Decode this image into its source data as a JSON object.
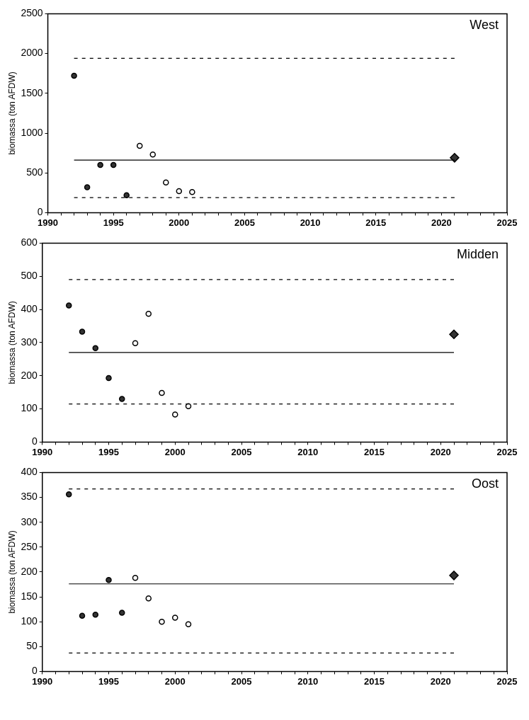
{
  "chart_data": [
    {
      "type": "scatter",
      "title": "West",
      "ylabel": "biomassa (ton AFDW)",
      "xlim": [
        1990,
        2025
      ],
      "ylim": [
        0,
        2500
      ],
      "yticks": [
        0,
        500,
        1000,
        1500,
        2000,
        2500
      ],
      "xticks": [
        1990,
        {
          "value": 1991,
          "label": null
        },
        {
          "value": 1992,
          "label": null
        },
        {
          "value": 1993,
          "label": null
        },
        {
          "value": 1994,
          "label": null
        },
        1995,
        {
          "value": 1996,
          "label": null
        },
        {
          "value": 1997,
          "label": null
        },
        {
          "value": 1998,
          "label": null
        },
        {
          "value": 1999,
          "label": null
        },
        2000,
        {
          "value": 2001,
          "label": null
        },
        {
          "value": 2002,
          "label": null
        },
        {
          "value": 2003,
          "label": null
        },
        {
          "value": 2004,
          "label": null
        },
        2005,
        {
          "value": 2006,
          "label": null
        },
        {
          "value": 2007,
          "label": null
        },
        {
          "value": 2008,
          "label": null
        },
        {
          "value": 2009,
          "label": null
        },
        2010,
        {
          "value": 2011,
          "label": null
        },
        {
          "value": 2012,
          "label": null
        },
        {
          "value": 2013,
          "label": null
        },
        {
          "value": 2014,
          "label": null
        },
        2015,
        {
          "value": 2016,
          "label": null
        },
        {
          "value": 2017,
          "label": null
        },
        {
          "value": 2018,
          "label": null
        },
        {
          "value": 2019,
          "label": null
        },
        2020,
        {
          "value": 2021,
          "label": null
        },
        {
          "value": 2022,
          "label": null
        },
        {
          "value": 2023,
          "label": null
        },
        {
          "value": 2024,
          "label": null
        },
        2025
      ],
      "grid": false,
      "legend": false,
      "series": [
        {
          "type": "line",
          "color": "#000000",
          "line_style": "solid",
          "x": [
            1992,
            2021
          ],
          "values": [
            660,
            660
          ]
        },
        {
          "type": "line",
          "color": "#000000",
          "line_style": "dashed",
          "x": [
            1992,
            2021
          ],
          "values": [
            1940,
            1940
          ]
        },
        {
          "type": "line",
          "color": "#000000",
          "line_style": "dashed",
          "x": [
            1992,
            2021
          ],
          "values": [
            190,
            190
          ]
        },
        {
          "type": "scatter",
          "marker": "circle",
          "color": "#333333",
          "x": [
            1992,
            1993,
            1994,
            1995,
            1996
          ],
          "values": [
            1720,
            320,
            600,
            600,
            220
          ]
        },
        {
          "type": "scatter",
          "marker": "circle",
          "color": "#ffffff",
          "x": [
            1997,
            1998,
            1999,
            2000,
            2001
          ],
          "values": [
            840,
            730,
            380,
            270,
            260
          ]
        },
        {
          "type": "scatter",
          "marker": "diamond",
          "color": "#333333",
          "x": [
            2021
          ],
          "values": [
            690
          ]
        }
      ]
    },
    {
      "type": "scatter",
      "title": "Midden",
      "ylabel": "biomassa (ton AFDW)",
      "xlim": [
        1990,
        2025
      ],
      "ylim": [
        0,
        600
      ],
      "yticks": [
        0,
        100,
        200,
        300,
        400,
        500,
        600
      ],
      "xticks": [
        1990,
        {
          "value": 1991,
          "label": null
        },
        {
          "value": 1992,
          "label": null
        },
        {
          "value": 1993,
          "label": null
        },
        {
          "value": 1994,
          "label": null
        },
        1995,
        {
          "value": 1996,
          "label": null
        },
        {
          "value": 1997,
          "label": null
        },
        {
          "value": 1998,
          "label": null
        },
        {
          "value": 1999,
          "label": null
        },
        2000,
        {
          "value": 2001,
          "label": null
        },
        {
          "value": 2002,
          "label": null
        },
        {
          "value": 2003,
          "label": null
        },
        {
          "value": 2004,
          "label": null
        },
        2005,
        {
          "value": 2006,
          "label": null
        },
        {
          "value": 2007,
          "label": null
        },
        {
          "value": 2008,
          "label": null
        },
        {
          "value": 2009,
          "label": null
        },
        2010,
        {
          "value": 2011,
          "label": null
        },
        {
          "value": 2012,
          "label": null
        },
        {
          "value": 2013,
          "label": null
        },
        {
          "value": 2014,
          "label": null
        },
        2015,
        {
          "value": 2016,
          "label": null
        },
        {
          "value": 2017,
          "label": null
        },
        {
          "value": 2018,
          "label": null
        },
        {
          "value": 2019,
          "label": null
        },
        2020,
        {
          "value": 2021,
          "label": null
        },
        {
          "value": 2022,
          "label": null
        },
        {
          "value": 2023,
          "label": null
        },
        {
          "value": 2024,
          "label": null
        },
        2025
      ],
      "grid": false,
      "legend": false,
      "series": [
        {
          "type": "line",
          "color": "#000000",
          "line_style": "solid",
          "x": [
            1992,
            2021
          ],
          "values": [
            270,
            270
          ]
        },
        {
          "type": "line",
          "color": "#000000",
          "line_style": "dashed",
          "x": [
            1992,
            2021
          ],
          "values": [
            490,
            490
          ]
        },
        {
          "type": "line",
          "color": "#000000",
          "line_style": "dashed",
          "x": [
            1992,
            2021
          ],
          "values": [
            115,
            115
          ]
        },
        {
          "type": "scatter",
          "marker": "circle",
          "color": "#333333",
          "x": [
            1992,
            1993,
            1994,
            1995,
            1996
          ],
          "values": [
            412,
            333,
            283,
            193,
            130
          ]
        },
        {
          "type": "scatter",
          "marker": "circle",
          "color": "#ffffff",
          "x": [
            1997,
            1998,
            1999,
            2000,
            2001
          ],
          "values": [
            298,
            387,
            148,
            83,
            108
          ]
        },
        {
          "type": "scatter",
          "marker": "diamond",
          "color": "#333333",
          "x": [
            2021
          ],
          "values": [
            325
          ]
        }
      ]
    },
    {
      "type": "scatter",
      "title": "Oost",
      "ylabel": "biomassa (ton AFDW)",
      "xlim": [
        1990,
        2025
      ],
      "ylim": [
        0,
        400
      ],
      "yticks": [
        0,
        50,
        100,
        150,
        200,
        250,
        300,
        350,
        400
      ],
      "xticks": [
        1990,
        {
          "value": 1991,
          "label": null
        },
        {
          "value": 1992,
          "label": null
        },
        {
          "value": 1993,
          "label": null
        },
        {
          "value": 1994,
          "label": null
        },
        1995,
        {
          "value": 1996,
          "label": null
        },
        {
          "value": 1997,
          "label": null
        },
        {
          "value": 1998,
          "label": null
        },
        {
          "value": 1999,
          "label": null
        },
        2000,
        {
          "value": 2001,
          "label": null
        },
        {
          "value": 2002,
          "label": null
        },
        {
          "value": 2003,
          "label": null
        },
        {
          "value": 2004,
          "label": null
        },
        2005,
        {
          "value": 2006,
          "label": null
        },
        {
          "value": 2007,
          "label": null
        },
        {
          "value": 2008,
          "label": null
        },
        {
          "value": 2009,
          "label": null
        },
        2010,
        {
          "value": 2011,
          "label": null
        },
        {
          "value": 2012,
          "label": null
        },
        {
          "value": 2013,
          "label": null
        },
        {
          "value": 2014,
          "label": null
        },
        2015,
        {
          "value": 2016,
          "label": null
        },
        {
          "value": 2017,
          "label": null
        },
        {
          "value": 2018,
          "label": null
        },
        {
          "value": 2019,
          "label": null
        },
        2020,
        {
          "value": 2021,
          "label": null
        },
        {
          "value": 2022,
          "label": null
        },
        {
          "value": 2023,
          "label": null
        },
        {
          "value": 2024,
          "label": null
        },
        2025
      ],
      "grid": false,
      "legend": false,
      "series": [
        {
          "type": "line",
          "color": "#000000",
          "line_style": "solid",
          "x": [
            1992,
            2021
          ],
          "values": [
            176,
            176
          ]
        },
        {
          "type": "line",
          "color": "#000000",
          "line_style": "dashed",
          "x": [
            1992,
            2021
          ],
          "values": [
            367,
            367
          ]
        },
        {
          "type": "line",
          "color": "#000000",
          "line_style": "dashed",
          "x": [
            1992,
            2021
          ],
          "values": [
            37,
            37
          ]
        },
        {
          "type": "scatter",
          "marker": "circle",
          "color": "#333333",
          "x": [
            1992,
            1993,
            1994,
            1995,
            1996
          ],
          "values": [
            356,
            112,
            114,
            184,
            118
          ]
        },
        {
          "type": "scatter",
          "marker": "circle",
          "color": "#ffffff",
          "x": [
            1997,
            1998,
            1999,
            2000,
            2001
          ],
          "values": [
            188,
            147,
            100,
            108,
            95
          ]
        },
        {
          "type": "scatter",
          "marker": "diamond",
          "color": "#333333",
          "x": [
            2021
          ],
          "values": [
            193
          ]
        }
      ]
    }
  ]
}
